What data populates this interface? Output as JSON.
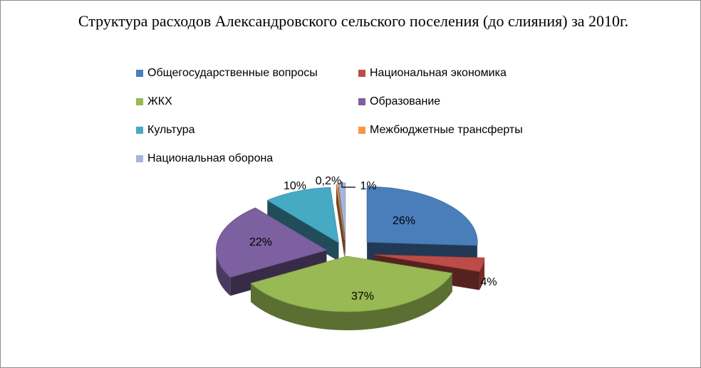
{
  "chart_data": {
    "type": "pie",
    "title": "Структура расходов Александровского сельского поселения (до слияния) за 2010г.",
    "legend_position": "top",
    "categories": [
      "Общегосударственные вопросы",
      "Национальная экономика",
      "ЖКХ",
      "Образование",
      "Культура",
      "Межбюджетные трансферты",
      "Национальная оборона"
    ],
    "values": [
      26,
      4,
      37,
      22,
      10,
      0.2,
      1
    ],
    "data_labels": [
      "26%",
      "4%",
      "37%",
      "22%",
      "10%",
      "0,2%",
      "1%"
    ],
    "colors": [
      "#4a7ebb",
      "#be4b48",
      "#98b954",
      "#7d60a0",
      "#46aac5",
      "#f79646",
      "#a5b6dc"
    ],
    "style": "3d exploded pie"
  }
}
